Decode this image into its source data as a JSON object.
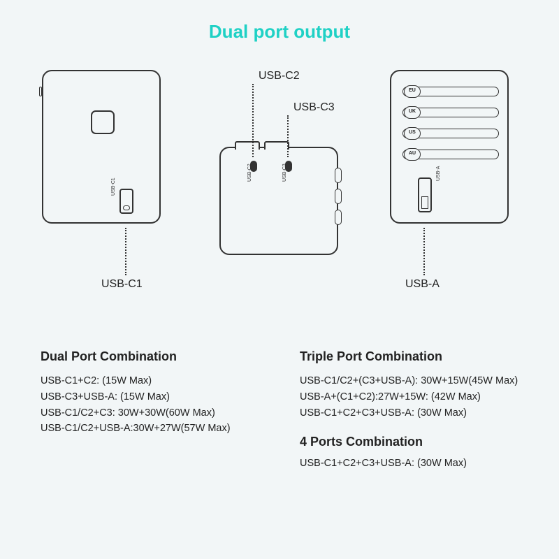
{
  "title": "Dual port output",
  "title_color": "#1fd1c5",
  "background_color": "#f2f6f7",
  "line_color": "#333333",
  "callouts": {
    "c1": "USB-C1",
    "c2": "USB-C2",
    "c3": "USB-C3",
    "a": "USB-A"
  },
  "device_left": {
    "port_tinylabel": "USB-C1"
  },
  "device_mid": {
    "port_c2_tinylabel": "USB-C2",
    "port_c3_tinylabel": "USB-C3"
  },
  "device_right": {
    "sliders": [
      "EU",
      "UK",
      "US",
      "AU"
    ],
    "usb_a_tinylabel": "USB-A"
  },
  "sections": {
    "dual": {
      "heading": "Dual Port Combination",
      "lines": [
        "USB-C1+C2: (15W Max)",
        "USB-C3+USB-A: (15W Max)",
        "USB-C1/C2+C3: 30W+30W(60W Max)",
        "USB-C1/C2+USB-A:30W+27W(57W Max)"
      ]
    },
    "triple": {
      "heading": "Triple Port Combination",
      "lines": [
        "USB-C1/C2+(C3+USB-A): 30W+15W(45W Max)",
        "USB-A+(C1+C2):27W+15W: (42W Max)",
        "USB-C1+C2+C3+USB-A: (30W Max)"
      ]
    },
    "four": {
      "heading": "4 Ports Combination",
      "lines": [
        "USB-C1+C2+C3+USB-A: (30W Max)"
      ]
    }
  }
}
